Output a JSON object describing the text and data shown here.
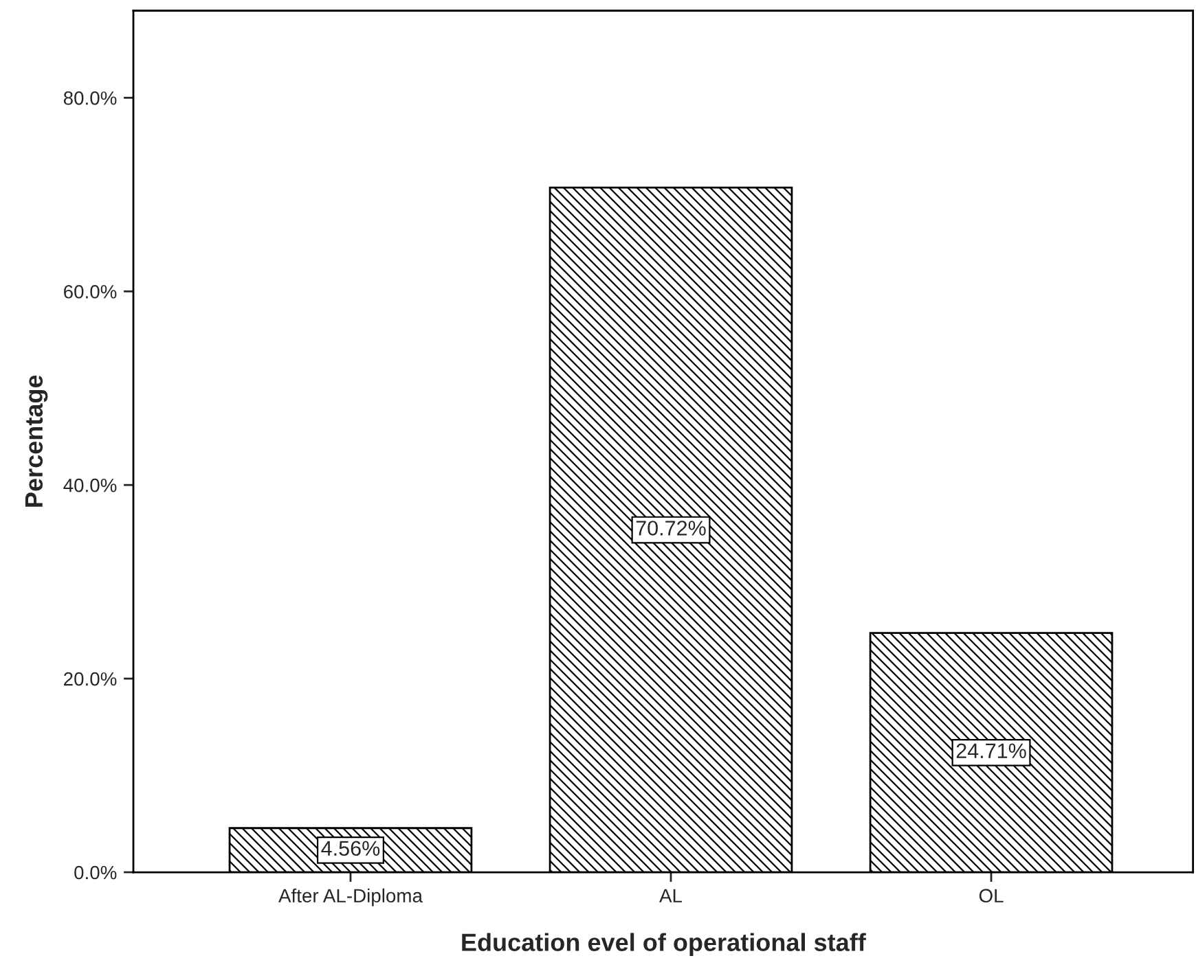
{
  "chart_data": {
    "type": "bar",
    "xlabel": "Education evel of operational staff",
    "ylabel": "Percentage",
    "categories": [
      "After AL-Diploma",
      "AL",
      "OL"
    ],
    "values": [
      4.56,
      70.72,
      24.71
    ],
    "value_labels": [
      "4.56%",
      "70.72%",
      "24.71%"
    ],
    "color": "#000000",
    "ylim": [
      0,
      89
    ],
    "yticks": [
      {
        "value": 0,
        "label": "0.0%"
      },
      {
        "value": 20,
        "label": "20.0%"
      },
      {
        "value": 40,
        "label": "40.0%"
      },
      {
        "value": 60,
        "label": "60.0%"
      },
      {
        "value": 80,
        "label": "80.0%"
      }
    ],
    "grid": false
  }
}
